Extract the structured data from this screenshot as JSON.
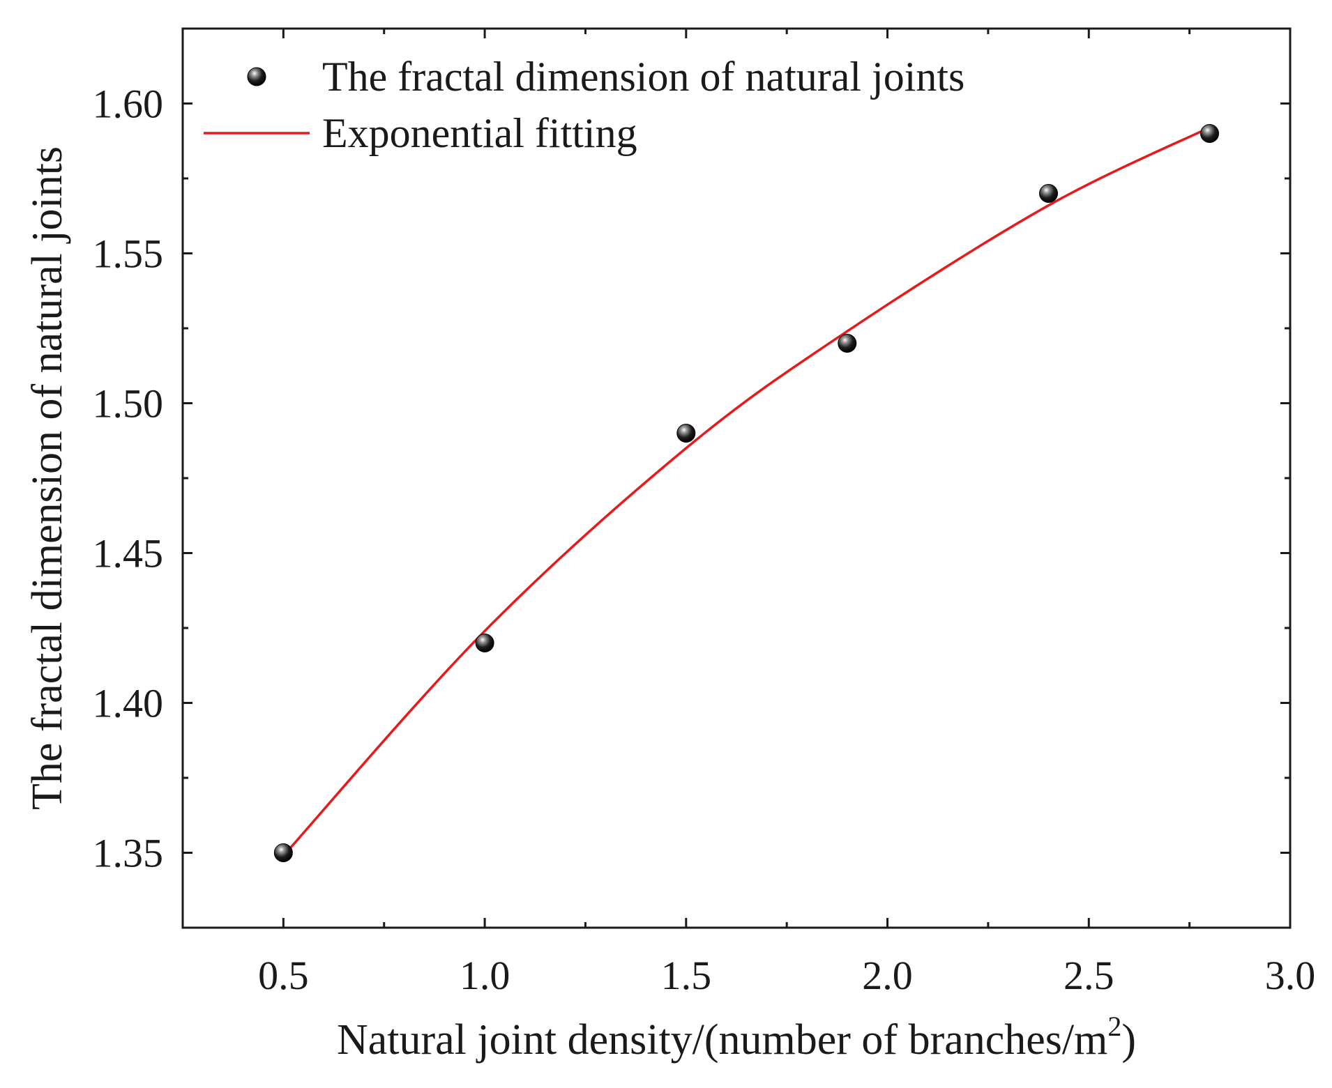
{
  "chart_data": {
    "type": "scatter",
    "title": "",
    "xlabel": "Natural joint density/(number of branches/m",
    "xlabel_superscript": "2",
    "xlabel_suffix": ")",
    "ylabel": "The fractal dimension of natural joints",
    "xlim": [
      0.25,
      3.0
    ],
    "ylim": [
      1.325,
      1.625
    ],
    "x_ticks": [
      0.5,
      1.0,
      1.5,
      2.0,
      2.5,
      3.0
    ],
    "x_tick_labels": [
      "0.5",
      "1.0",
      "1.5",
      "2.0",
      "2.5",
      "3.0"
    ],
    "y_ticks": [
      1.35,
      1.4,
      1.45,
      1.5,
      1.55,
      1.6
    ],
    "y_tick_labels": [
      "1.35",
      "1.40",
      "1.45",
      "1.50",
      "1.55",
      "1.60"
    ],
    "grid": false,
    "legend_position": "top-left",
    "series": [
      {
        "name": "The fractal dimension of natural joints",
        "kind": "scatter",
        "color": "#111111",
        "x": [
          0.5,
          1.0,
          1.5,
          1.9,
          2.4,
          2.8
        ],
        "y": [
          1.35,
          1.42,
          1.49,
          1.52,
          1.57,
          1.59
        ]
      },
      {
        "name": "Exponential fitting",
        "kind": "line",
        "color": "#e8191a",
        "x": [
          0.5,
          1.0,
          1.5,
          1.9,
          2.4,
          2.8
        ],
        "y": [
          1.349,
          1.424,
          1.485,
          1.524,
          1.566,
          1.592
        ]
      }
    ]
  }
}
